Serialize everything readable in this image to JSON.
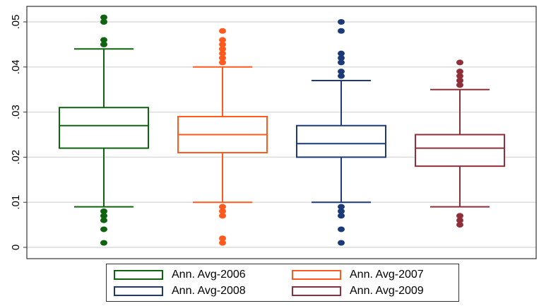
{
  "chart_data": {
    "type": "box",
    "title": "",
    "xlabel": "",
    "ylabel": "",
    "ylim": [
      0,
      0.05
    ],
    "yticks": [
      0,
      0.01,
      0.02,
      0.03,
      0.04,
      0.05
    ],
    "ytick_labels": [
      "0",
      ".01",
      ".02",
      ".03",
      ".04",
      ".05"
    ],
    "grid": true,
    "legend_position": "bottom",
    "series": [
      {
        "name": "Ann. Avg-2006",
        "color": "#0f6410",
        "whisker_low": 0.009,
        "q1": 0.022,
        "median": 0.027,
        "q3": 0.031,
        "whisker_high": 0.044,
        "outliers": [
          0.051,
          0.05,
          0.046,
          0.045,
          0.008,
          0.007,
          0.006,
          0.004,
          0.001
        ]
      },
      {
        "name": "Ann. Avg-2007",
        "color": "#ff5a1e",
        "whisker_low": 0.01,
        "q1": 0.021,
        "median": 0.025,
        "q3": 0.029,
        "whisker_high": 0.04,
        "outliers": [
          0.048,
          0.046,
          0.045,
          0.044,
          0.043,
          0.042,
          0.041,
          0.009,
          0.008,
          0.007,
          0.002,
          0.001
        ]
      },
      {
        "name": "Ann. Avg-2008",
        "color": "#1c3a78",
        "whisker_low": 0.01,
        "q1": 0.02,
        "median": 0.023,
        "q3": 0.027,
        "whisker_high": 0.037,
        "outliers": [
          0.05,
          0.048,
          0.043,
          0.042,
          0.041,
          0.039,
          0.038,
          0.009,
          0.008,
          0.007,
          0.004,
          0.001
        ]
      },
      {
        "name": "Ann. Avg-2009",
        "color": "#8e2f3a",
        "whisker_low": 0.009,
        "q1": 0.018,
        "median": 0.022,
        "q3": 0.025,
        "whisker_high": 0.035,
        "outliers": [
          0.041,
          0.039,
          0.038,
          0.037,
          0.036,
          0.007,
          0.006,
          0.005
        ]
      }
    ]
  }
}
